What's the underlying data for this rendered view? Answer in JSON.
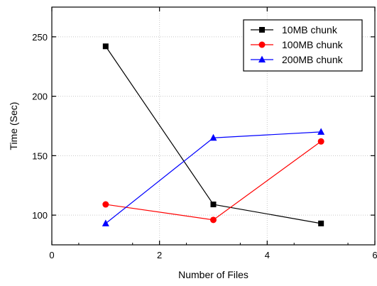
{
  "chart_data": {
    "type": "line",
    "title": "",
    "xlabel": "Number of Files",
    "ylabel": "Time (Sec)",
    "xlim": [
      0,
      6
    ],
    "ylim": [
      75,
      275
    ],
    "xticks": [
      0,
      2,
      4,
      6
    ],
    "yticks": [
      100,
      150,
      200,
      250
    ],
    "grid": true,
    "legend_position": "top-right",
    "series": [
      {
        "name": "10MB chunk",
        "color": "#000000",
        "marker": "square",
        "x": [
          1,
          3,
          5
        ],
        "y": [
          242,
          109,
          93
        ]
      },
      {
        "name": "100MB chunk",
        "color": "#ff0000",
        "marker": "circle",
        "x": [
          1,
          3,
          5
        ],
        "y": [
          109,
          96,
          162
        ]
      },
      {
        "name": "200MB chunk",
        "color": "#0000ff",
        "marker": "triangle",
        "x": [
          1,
          3,
          5
        ],
        "y": [
          93,
          165,
          170
        ]
      }
    ]
  }
}
